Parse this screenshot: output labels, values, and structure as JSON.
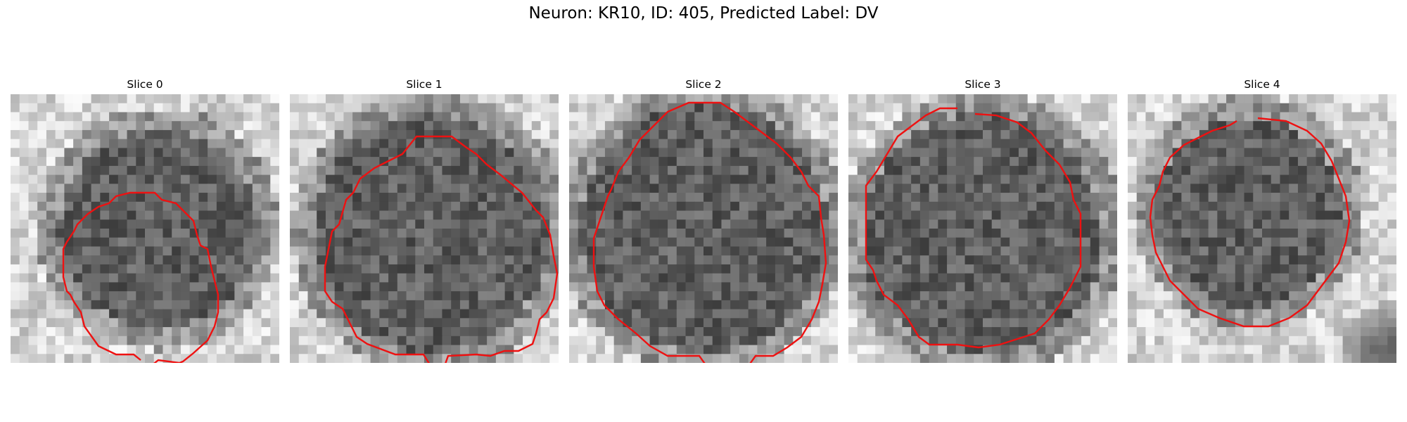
{
  "figure": {
    "title": "Neuron: KR10, ID: 405, Predicted Label: DV",
    "contour_color": "#ee1111",
    "colormap": "grayscale"
  },
  "panels": [
    {
      "label": "Slice 0"
    },
    {
      "label": "Slice 1"
    },
    {
      "label": "Slice 2"
    },
    {
      "label": "Slice 3"
    },
    {
      "label": "Slice 4"
    }
  ]
}
